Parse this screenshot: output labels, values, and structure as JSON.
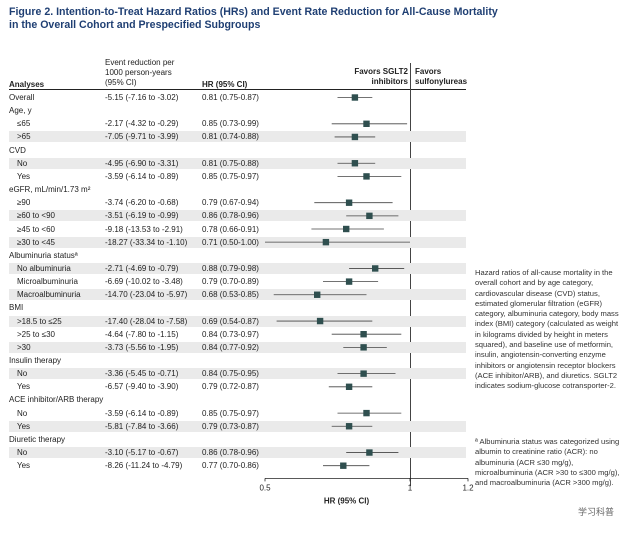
{
  "figure": {
    "title_line1": "Figure 2. Intention-to-Treat Hazard Ratios (HRs) and Event Rate Reduction for All-Cause Mortality",
    "title_line2": "in the Overall Cohort and Prespecified Subgroups"
  },
  "headers": {
    "analyses": "Analyses",
    "event_line1": "Event reduction per",
    "event_line2": "1000 person-years",
    "event_line3": "(95% CI)",
    "hr": "HR (95% CI)",
    "favors_sglt2_line1": "Favors SGLT2",
    "favors_sglt2_line2": "inhibitors",
    "favors_su_line1": "Favors",
    "favors_su_line2": "sulfonylureas"
  },
  "rows": [
    {
      "label": "Overall",
      "event": "-5.15 (-7.16 to -3.02)",
      "hr_text": "0.81 (0.75-0.87)",
      "hr": 0.81,
      "lo": 0.75,
      "hi": 0.87,
      "header": false,
      "indent": false
    },
    {
      "label": "Age, y",
      "event": "",
      "hr_text": "",
      "hr": null,
      "lo": null,
      "hi": null,
      "header": true,
      "indent": false
    },
    {
      "label": "≤65",
      "event": "-2.17 (-4.32 to -0.29)",
      "hr_text": "0.85 (0.73-0.99)",
      "hr": 0.85,
      "lo": 0.73,
      "hi": 0.99,
      "header": false,
      "indent": true
    },
    {
      "label": ">65",
      "event": "-7.05 (-9.71 to -3.99)",
      "hr_text": "0.81 (0.74-0.88)",
      "hr": 0.81,
      "lo": 0.74,
      "hi": 0.88,
      "header": false,
      "indent": true
    },
    {
      "label": "CVD",
      "event": "",
      "hr_text": "",
      "hr": null,
      "lo": null,
      "hi": null,
      "header": true,
      "indent": false
    },
    {
      "label": "No",
      "event": "-4.95 (-6.90 to -3.31)",
      "hr_text": "0.81 (0.75-0.88)",
      "hr": 0.81,
      "lo": 0.75,
      "hi": 0.88,
      "header": false,
      "indent": true
    },
    {
      "label": "Yes",
      "event": "-3.59 (-6.14 to -0.89)",
      "hr_text": "0.85 (0.75-0.97)",
      "hr": 0.85,
      "lo": 0.75,
      "hi": 0.97,
      "header": false,
      "indent": true
    },
    {
      "label": "eGFR, mL/min/1.73 m²",
      "event": "",
      "hr_text": "",
      "hr": null,
      "lo": null,
      "hi": null,
      "header": true,
      "indent": false
    },
    {
      "label": "≥90",
      "event": "-3.74 (-6.20 to -0.68)",
      "hr_text": "0.79 (0.67-0.94)",
      "hr": 0.79,
      "lo": 0.67,
      "hi": 0.94,
      "header": false,
      "indent": true
    },
    {
      "label": "≥60 to <90",
      "event": "-3.51 (-6.19 to -0.99)",
      "hr_text": "0.86 (0.78-0.96)",
      "hr": 0.86,
      "lo": 0.78,
      "hi": 0.96,
      "header": false,
      "indent": true
    },
    {
      "label": "≥45 to <60",
      "event": "-9.18 (-13.53 to -2.91)",
      "hr_text": "0.78 (0.66-0.91)",
      "hr": 0.78,
      "lo": 0.66,
      "hi": 0.91,
      "header": false,
      "indent": true
    },
    {
      "label": "≥30 to <45",
      "event": "-18.27 (-33.34 to -1.10)",
      "hr_text": "0.71 (0.50-1.00)",
      "hr": 0.71,
      "lo": 0.5,
      "hi": 1.0,
      "header": false,
      "indent": true
    },
    {
      "label": "Albuminuria statusª",
      "event": "",
      "hr_text": "",
      "hr": null,
      "lo": null,
      "hi": null,
      "header": true,
      "indent": false
    },
    {
      "label": "No albuminuria",
      "event": "-2.71 (-4.69 to -0.79)",
      "hr_text": "0.88 (0.79-0.98)",
      "hr": 0.88,
      "lo": 0.79,
      "hi": 0.98,
      "header": false,
      "indent": true
    },
    {
      "label": "Microalbuminuria",
      "event": "-6.69 (-10.02 to -3.48)",
      "hr_text": "0.79 (0.70-0.89)",
      "hr": 0.79,
      "lo": 0.7,
      "hi": 0.89,
      "header": false,
      "indent": true
    },
    {
      "label": "Macroalbuminuria",
      "event": "-14.70 (-23.04 to -5.97)",
      "hr_text": "0.68 (0.53-0.85)",
      "hr": 0.68,
      "lo": 0.53,
      "hi": 0.85,
      "header": false,
      "indent": true
    },
    {
      "label": "BMI",
      "event": "",
      "hr_text": "",
      "hr": null,
      "lo": null,
      "hi": null,
      "header": true,
      "indent": false
    },
    {
      "label": ">18.5 to ≤25",
      "event": "-17.40 (-28.04 to -7.58)",
      "hr_text": "0.69 (0.54-0.87)",
      "hr": 0.69,
      "lo": 0.54,
      "hi": 0.87,
      "header": false,
      "indent": true
    },
    {
      "label": ">25 to ≤30",
      "event": "-4.64 (-7.80 to -1.15)",
      "hr_text": "0.84 (0.73-0.97)",
      "hr": 0.84,
      "lo": 0.73,
      "hi": 0.97,
      "header": false,
      "indent": true
    },
    {
      "label": ">30",
      "event": "-3.73 (-5.56 to -1.95)",
      "hr_text": "0.84 (0.77-0.92)",
      "hr": 0.84,
      "lo": 0.77,
      "hi": 0.92,
      "header": false,
      "indent": true
    },
    {
      "label": "Insulin therapy",
      "event": "",
      "hr_text": "",
      "hr": null,
      "lo": null,
      "hi": null,
      "header": true,
      "indent": false
    },
    {
      "label": "No",
      "event": "-3.36 (-5.45 to -0.71)",
      "hr_text": "0.84 (0.75-0.95)",
      "hr": 0.84,
      "lo": 0.75,
      "hi": 0.95,
      "header": false,
      "indent": true
    },
    {
      "label": "Yes",
      "event": "-6.57 (-9.40 to -3.90)",
      "hr_text": "0.79 (0.72-0.87)",
      "hr": 0.79,
      "lo": 0.72,
      "hi": 0.87,
      "header": false,
      "indent": true
    },
    {
      "label": "ACE inhibitor/ARB therapy",
      "event": "",
      "hr_text": "",
      "hr": null,
      "lo": null,
      "hi": null,
      "header": true,
      "indent": false
    },
    {
      "label": "No",
      "event": "-3.59 (-6.14 to -0.89)",
      "hr_text": "0.85 (0.75-0.97)",
      "hr": 0.85,
      "lo": 0.75,
      "hi": 0.97,
      "header": false,
      "indent": true
    },
    {
      "label": "Yes",
      "event": "-5.81 (-7.84 to -3.66)",
      "hr_text": "0.79 (0.73-0.87)",
      "hr": 0.79,
      "lo": 0.73,
      "hi": 0.87,
      "header": false,
      "indent": true
    },
    {
      "label": "Diuretic therapy",
      "event": "",
      "hr_text": "",
      "hr": null,
      "lo": null,
      "hi": null,
      "header": true,
      "indent": false
    },
    {
      "label": "No",
      "event": "-3.10 (-5.17 to -0.67)",
      "hr_text": "0.86 (0.78-0.96)",
      "hr": 0.86,
      "lo": 0.78,
      "hi": 0.96,
      "header": false,
      "indent": true
    },
    {
      "label": "Yes",
      "event": "-8.26 (-11.24 to -4.79)",
      "hr_text": "0.77 (0.70-0.86)",
      "hr": 0.77,
      "lo": 0.7,
      "hi": 0.86,
      "header": false,
      "indent": true
    }
  ],
  "chart_data": {
    "type": "forest",
    "xlabel": "HR (95% CI)",
    "xlim": [
      0.5,
      1.2
    ],
    "xticks": [
      0.5,
      1,
      1.2
    ],
    "xtick_labels": [
      "0.5",
      "1",
      "1.2"
    ],
    "reference_line": 1.0,
    "marker_color": "#2f4f4f",
    "categories": [
      "Overall",
      "≤65",
      ">65",
      "CVD No",
      "CVD Yes",
      "≥90",
      "≥60 to <90",
      "≥45 to <60",
      "≥30 to <45",
      "No albuminuria",
      "Microalbuminuria",
      "Macroalbuminuria",
      ">18.5 to ≤25",
      ">25 to ≤30",
      ">30",
      "Insulin No",
      "Insulin Yes",
      "ACE/ARB No",
      "ACE/ARB Yes",
      "Diuretic No",
      "Diuretic Yes"
    ],
    "hr": [
      0.81,
      0.85,
      0.81,
      0.81,
      0.85,
      0.79,
      0.86,
      0.78,
      0.71,
      0.88,
      0.79,
      0.68,
      0.69,
      0.84,
      0.84,
      0.84,
      0.79,
      0.85,
      0.79,
      0.86,
      0.77
    ],
    "ci_lower": [
      0.75,
      0.73,
      0.74,
      0.75,
      0.75,
      0.67,
      0.78,
      0.66,
      0.5,
      0.79,
      0.7,
      0.53,
      0.54,
      0.73,
      0.77,
      0.75,
      0.72,
      0.75,
      0.73,
      0.78,
      0.7
    ],
    "ci_upper": [
      0.87,
      0.99,
      0.88,
      0.88,
      0.97,
      0.94,
      0.96,
      0.91,
      1.0,
      0.98,
      0.89,
      0.85,
      0.87,
      0.97,
      0.92,
      0.95,
      0.87,
      0.97,
      0.87,
      0.96,
      0.86
    ]
  },
  "side_note": {
    "paragraph": "Hazard ratios of all-cause mortality in the overall cohort and by age category, cardiovascular disease (CVD) status, estimated glomerular filtration (eGFR) category, albuminuria category, body mass index (BMI) category (calculated as weight in kilograms divided by height in meters squared), and baseline use of metformin, insulin, angiotensin-converting enzyme inhibitors or angiotensin receptor blockers (ACE inhibitor/ARB), and diuretics. SGLT2 indicates sodium-glucose cotransporter-2.",
    "footnote": "ª Albuminuria status was categorized using albumin to creatinine ratio (ACR): no albuminuria (ACR ≤30 mg/g), microalbuminuria (ACR >30 to ≤300 mg/g), and macroalbuminuria (ACR >300 mg/g)."
  },
  "watermark": "学习科普"
}
